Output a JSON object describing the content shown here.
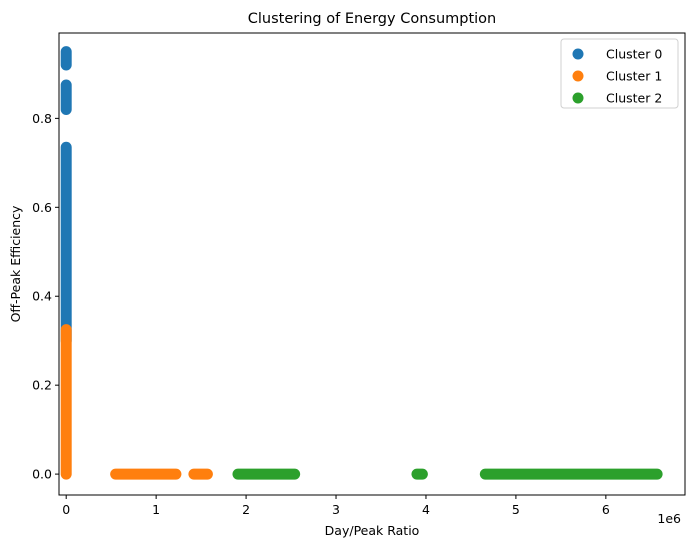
{
  "chart_data": {
    "type": "scatter",
    "title": "Clustering of Energy Consumption",
    "xlabel": "Day/Peak Ratio",
    "ylabel": "Off-Peak Efficiency",
    "x_scale_label": "1e6",
    "x_scale": 1000000,
    "xlim": [
      -0.08,
      6.88
    ],
    "ylim": [
      -0.047,
      0.992
    ],
    "x_ticks": [
      0,
      1,
      2,
      3,
      4,
      5,
      6
    ],
    "y_ticks": [
      0.0,
      0.2,
      0.4,
      0.6,
      0.8
    ],
    "grid": false,
    "legend_position": "top-right",
    "series": [
      {
        "name": "Cluster 0",
        "color": "#1f77b4",
        "segments": [
          {
            "x": 0,
            "y_from": 0.3,
            "y_to": 0.735
          },
          {
            "x": 0,
            "y_from": 0.82,
            "y_to": 0.875
          },
          {
            "x": 0,
            "y_from": 0.92,
            "y_to": 0.95
          }
        ]
      },
      {
        "name": "Cluster 1",
        "color": "#ff7f0e",
        "segments": [
          {
            "x": 0,
            "y_from": 0.0,
            "y_to": 0.325
          },
          {
            "y": 0,
            "x_from": 0.55,
            "x_to": 1.22
          },
          {
            "y": 0,
            "x_from": 1.42,
            "x_to": 1.57
          }
        ]
      },
      {
        "name": "Cluster 2",
        "color": "#2ca02c",
        "segments": [
          {
            "y": 0,
            "x_from": 1.91,
            "x_to": 2.54
          },
          {
            "y": 0,
            "x_from": 3.9,
            "x_to": 3.96
          },
          {
            "y": 0,
            "x_from": 4.66,
            "x_to": 6.57
          }
        ]
      }
    ]
  }
}
